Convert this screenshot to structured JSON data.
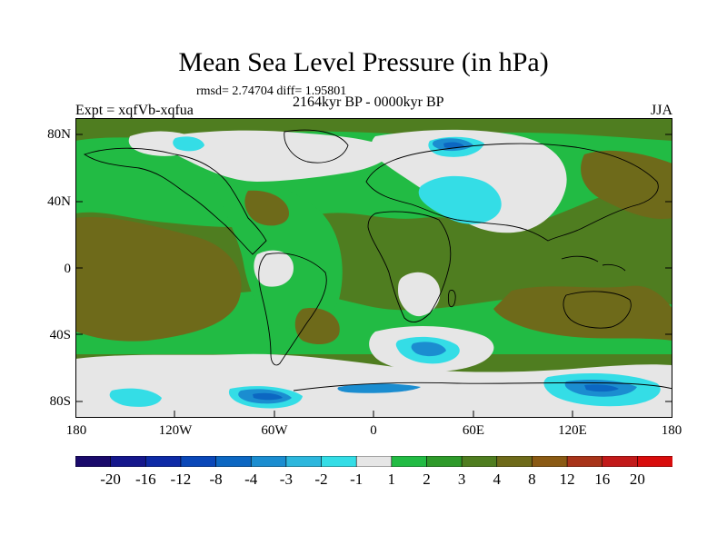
{
  "title": "Mean Sea Level Pressure (in hPa)",
  "stats": "rmsd= 2.74704 diff= 1.95801",
  "experiment": "Expt = xqfVb-xqfua",
  "period": "2164kyr BP - 0000kyr BP",
  "season": "JJA",
  "lat_labels": [
    "80N",
    "40N",
    "0",
    "40S",
    "80S"
  ],
  "lat_values": [
    80,
    40,
    0,
    -40,
    -80
  ],
  "lon_labels": [
    "180",
    "120W",
    "60W",
    "0",
    "60E",
    "120E",
    "180"
  ],
  "lon_values": [
    -180,
    -120,
    -60,
    0,
    60,
    120,
    180
  ],
  "colorbar": {
    "labels": [
      "-20",
      "-16",
      "-12",
      "-8",
      "-4",
      "-3",
      "-2",
      "-1",
      "1",
      "2",
      "3",
      "4",
      "8",
      "12",
      "16",
      "20"
    ],
    "colors": [
      "#1a0a6b",
      "#15178c",
      "#0e2aa6",
      "#0a47b8",
      "#0c67c2",
      "#1b8dd0",
      "#2db7dd",
      "#34dde6",
      "#e6e6e6",
      "#22bb44",
      "#2e9a2a",
      "#4f7d20",
      "#6e6a1a",
      "#8a5a14",
      "#a8341a",
      "#c21a1a",
      "#d80c0c"
    ]
  },
  "palette": {
    "ocean_base": "#4f7d20",
    "sea_green": "#22bb44",
    "brown": "#6e6a1a",
    "grey": "#e6e6e6",
    "light_cyan": "#34dde6",
    "blue": "#1b8dd0",
    "dark_blue": "#0c67c2"
  }
}
